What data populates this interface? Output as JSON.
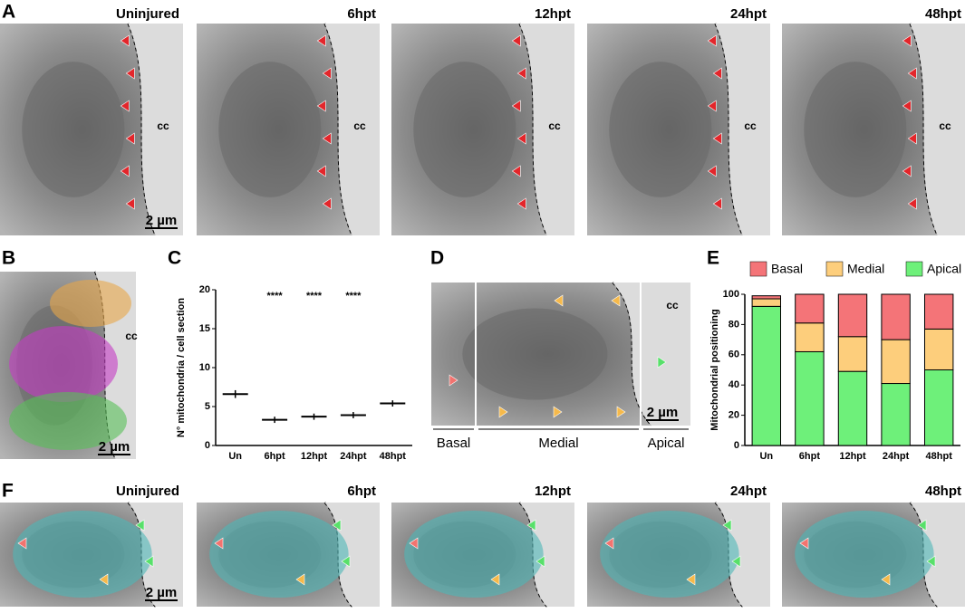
{
  "panel_labels": [
    "A",
    "B",
    "C",
    "D",
    "E",
    "F"
  ],
  "row_a": [
    {
      "title": "Uninjured"
    },
    {
      "title": "6hpt"
    },
    {
      "title": "12hpt"
    },
    {
      "title": "24hpt"
    },
    {
      "title": "48hpt"
    }
  ],
  "row_f": [
    {
      "title": "Uninjured"
    },
    {
      "title": "6hpt"
    },
    {
      "title": "12hpt"
    },
    {
      "title": "24hpt"
    },
    {
      "title": "48hpt"
    }
  ],
  "scale_bar": "2 µm",
  "cc_label": "cc",
  "panel_d": {
    "regions": [
      "Basal",
      "Medial",
      "Apical"
    ]
  },
  "chart_data": [
    {
      "type": "dot",
      "ylabel": "N° mitochondria / cell section",
      "categories": [
        "Un",
        "6hpt",
        "12hpt",
        "24hpt",
        "48hpt"
      ],
      "values": [
        6.6,
        3.3,
        3.7,
        3.9,
        5.4
      ],
      "errors": [
        0.5,
        0.4,
        0.4,
        0.4,
        0.4
      ],
      "annotations": [
        null,
        "****",
        "****",
        "****",
        null
      ],
      "ylim": [
        0,
        20
      ],
      "yticks": [
        0,
        5,
        10,
        15,
        20
      ],
      "color": "#000000"
    },
    {
      "type": "stacked_bar",
      "ylabel": "Mitochondrial positioning",
      "categories": [
        "Un",
        "6hpt",
        "12hpt",
        "24hpt",
        "48hpt"
      ],
      "series": [
        {
          "name": "Basal",
          "color": "#f47478",
          "values": [
            2,
            19,
            28,
            30,
            23
          ]
        },
        {
          "name": "Medial",
          "color": "#fdce7c",
          "values": [
            5,
            19,
            23,
            29,
            27
          ]
        },
        {
          "name": "Apical",
          "color": "#6ef07a",
          "values": [
            92,
            62,
            49,
            41,
            50
          ]
        }
      ],
      "ylim": [
        0,
        100
      ],
      "yticks": [
        0,
        20,
        40,
        60,
        80,
        100
      ],
      "legend": "top"
    }
  ]
}
